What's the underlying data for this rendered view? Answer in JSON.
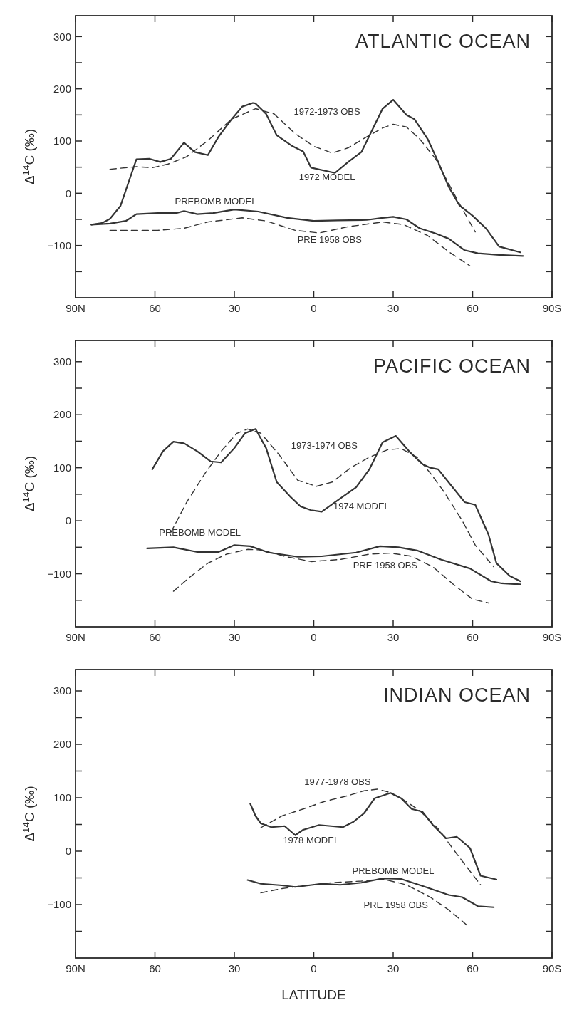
{
  "chart_data": [
    {
      "type": "line",
      "title": "ATLANTIC OCEAN",
      "ylabel": "Δ$^{14}$C  (‰)",
      "xlim": [
        90,
        -90
      ],
      "ylim": [
        -200,
        340
      ],
      "xticks": [
        {
          "value": 90,
          "label": "90N"
        },
        60,
        30,
        0,
        {
          "value": -30,
          "label": "30"
        },
        {
          "value": -60,
          "label": "60"
        },
        {
          "value": -90,
          "label": "90S"
        }
      ],
      "yticks": [
        {
          "value": -150,
          "label": null
        },
        {
          "value": -100,
          "label": "−100"
        },
        {
          "value": -50,
          "label": null
        },
        0,
        {
          "value": 50,
          "label": null
        },
        100,
        {
          "value": 150,
          "label": null
        },
        200,
        {
          "value": 250,
          "label": null
        },
        300
      ],
      "grid": false,
      "legend": false,
      "marker": "none",
      "series": [
        {
          "name": "1972 MODEL",
          "color": "#333333",
          "line_style": "solid",
          "x": [
            84,
            80,
            77,
            73,
            67,
            62,
            58,
            54,
            49,
            45,
            40,
            36,
            31,
            27,
            23,
            22,
            18,
            14,
            8,
            4,
            1,
            -8,
            -13,
            -18,
            -26,
            -30,
            -35,
            -38,
            -43,
            -47,
            -51,
            -55,
            -60,
            -65,
            -70,
            -78
          ],
          "values": [
            -60,
            -57,
            -49,
            -24,
            65,
            66,
            60,
            66,
            97,
            79,
            73,
            108,
            142,
            166,
            173,
            172,
            152,
            111,
            90,
            80,
            49,
            39,
            60,
            79,
            162,
            179,
            150,
            142,
            104,
            60,
            12,
            -23,
            -43,
            -67,
            -102,
            -113
          ]
        },
        {
          "name": "1972-1973 OBS",
          "color": "#333333",
          "line_style": "dashed",
          "x": [
            77,
            67,
            61,
            55,
            48,
            40,
            31,
            22,
            15,
            7,
            0,
            -7,
            -13,
            -20,
            -26,
            -30,
            -35,
            -40,
            -46,
            -51,
            -56,
            -61
          ],
          "values": [
            46,
            51,
            49,
            56,
            70,
            101,
            142,
            162,
            152,
            114,
            90,
            77,
            87,
            108,
            125,
            132,
            127,
            104,
            66,
            18,
            -29,
            -74
          ]
        },
        {
          "name": "PREBOMB MODEL",
          "color": "#333333",
          "line_style": "solid",
          "x": [
            84,
            77,
            71,
            67,
            59,
            52,
            49,
            44,
            38,
            30,
            21,
            10,
            0,
            -9,
            -20,
            -26,
            -30,
            -35,
            -40,
            -46,
            -51,
            -57,
            -62,
            -70,
            -79
          ],
          "values": [
            -60,
            -58,
            -53,
            -40,
            -38,
            -38,
            -34,
            -40,
            -38,
            -31,
            -35,
            -47,
            -53,
            -52,
            -51,
            -47,
            -45,
            -50,
            -67,
            -77,
            -87,
            -109,
            -115,
            -118,
            -120
          ]
        },
        {
          "name": "PRE 1958 OBS",
          "color": "#333333",
          "line_style": "dashed",
          "x": [
            77,
            59,
            49,
            40,
            27,
            18,
            7,
            -2,
            -13,
            -26,
            -34,
            -43,
            -51,
            -59
          ],
          "values": [
            -71,
            -71,
            -67,
            -55,
            -47,
            -53,
            -71,
            -76,
            -64,
            -55,
            -60,
            -81,
            -112,
            -139
          ]
        }
      ]
    },
    {
      "type": "line",
      "title": "PACIFIC OCEAN",
      "ylabel": "Δ$^{14}$C  (‰)",
      "xlim": [
        90,
        -90
      ],
      "ylim": [
        -200,
        340
      ],
      "xticks": [
        {
          "value": 90,
          "label": "90N"
        },
        60,
        30,
        0,
        {
          "value": -30,
          "label": "30"
        },
        {
          "value": -60,
          "label": "60"
        },
        {
          "value": -90,
          "label": "90S"
        }
      ],
      "yticks": [
        {
          "value": -150,
          "label": null
        },
        {
          "value": -100,
          "label": "−100"
        },
        {
          "value": -50,
          "label": null
        },
        0,
        {
          "value": 50,
          "label": null
        },
        100,
        {
          "value": 150,
          "label": null
        },
        200,
        {
          "value": 250,
          "label": null
        },
        300
      ],
      "grid": false,
      "legend": false,
      "marker": "none",
      "series": [
        {
          "name": "1974 MODEL",
          "color": "#333333",
          "line_style": "solid",
          "x": [
            61,
            57,
            53,
            49,
            44,
            39,
            35,
            30,
            26,
            22,
            18,
            14,
            9,
            5,
            1,
            -3,
            -10,
            -16,
            -21,
            -26,
            -31,
            -36,
            -41,
            -44,
            -47,
            -52,
            -57,
            -61,
            -66,
            -69,
            -74,
            -78
          ],
          "values": [
            97,
            131,
            149,
            146,
            131,
            112,
            110,
            137,
            165,
            173,
            137,
            73,
            46,
            27,
            20,
            17,
            42,
            63,
            97,
            148,
            160,
            131,
            107,
            100,
            97,
            66,
            35,
            30,
            -26,
            -80,
            -104,
            -114
          ]
        },
        {
          "name": "1973-1974 OBS",
          "color": "#333333",
          "line_style": "dashed",
          "x": [
            54,
            48,
            41,
            35,
            29,
            25,
            20,
            13,
            6,
            -1,
            -7,
            -14,
            -21,
            -28,
            -33,
            -39,
            -44,
            -49,
            -56,
            -61,
            -68
          ],
          "values": [
            -22,
            35,
            90,
            131,
            165,
            173,
            165,
            124,
            76,
            65,
            73,
            100,
            120,
            134,
            136,
            120,
            90,
            56,
            1,
            -46,
            -87
          ]
        },
        {
          "name": "PREBOMB MODEL",
          "color": "#333333",
          "line_style": "solid",
          "x": [
            63,
            53,
            44,
            36,
            30,
            24,
            17,
            6,
            -3,
            -16,
            -25,
            -32,
            -39,
            -48,
            -59,
            -67,
            -71,
            -78
          ],
          "values": [
            -52,
            -50,
            -59,
            -59,
            -46,
            -48,
            -60,
            -68,
            -67,
            -60,
            -48,
            -50,
            -56,
            -73,
            -90,
            -114,
            -118,
            -120
          ]
        },
        {
          "name": "PRE 1958 OBS",
          "color": "#333333",
          "line_style": "dashed",
          "x": [
            53,
            47,
            40,
            33,
            25,
            20,
            11,
            1,
            -10,
            -21,
            -29,
            -37,
            -45,
            -53,
            -60,
            -66
          ],
          "values": [
            -133,
            -107,
            -80,
            -63,
            -54,
            -55,
            -67,
            -77,
            -73,
            -63,
            -61,
            -67,
            -87,
            -121,
            -148,
            -155
          ]
        }
      ]
    },
    {
      "type": "line",
      "title": "INDIAN OCEAN",
      "ylabel": "Δ$^{14}$C  (‰)",
      "xlabel": "LATITUDE",
      "xlim": [
        90,
        -90
      ],
      "ylim": [
        -200,
        340
      ],
      "xticks": [
        {
          "value": 90,
          "label": "90N"
        },
        60,
        30,
        0,
        {
          "value": -30,
          "label": "30"
        },
        {
          "value": -60,
          "label": "60"
        },
        {
          "value": -90,
          "label": "90S"
        }
      ],
      "yticks": [
        {
          "value": -150,
          "label": null
        },
        {
          "value": -100,
          "label": "−100"
        },
        {
          "value": -50,
          "label": null
        },
        0,
        {
          "value": 50,
          "label": null
        },
        100,
        {
          "value": 150,
          "label": null
        },
        200,
        {
          "value": 250,
          "label": null
        },
        300
      ],
      "grid": false,
      "legend": false,
      "marker": "none",
      "series": [
        {
          "name": "1978 MODEL",
          "color": "#333333",
          "line_style": "solid",
          "x": [
            24,
            22,
            20,
            16,
            11,
            7,
            4,
            -2,
            -11,
            -15,
            -19,
            -23,
            -29,
            -33,
            -37,
            -41,
            -45,
            -50,
            -54,
            -59,
            -63,
            -69
          ],
          "values": [
            89,
            66,
            52,
            45,
            47,
            30,
            40,
            49,
            45,
            55,
            71,
            99,
            109,
            99,
            79,
            74,
            49,
            24,
            27,
            6,
            -46,
            -53
          ]
        },
        {
          "name": "1977-1978 OBS",
          "color": "#333333",
          "line_style": "dashed",
          "x": [
            20,
            12,
            4,
            -4,
            -13,
            -19,
            -24,
            -28,
            -33,
            -40,
            -47,
            -54,
            -63
          ],
          "values": [
            44,
            66,
            79,
            93,
            104,
            113,
            116,
            111,
            99,
            76,
            42,
            -5,
            -63
          ]
        },
        {
          "name": "PREBOMB MODEL",
          "color": "#333333",
          "line_style": "solid",
          "x": [
            25,
            20,
            12,
            7,
            -3,
            -10,
            -18,
            -26,
            -33,
            -41,
            -51,
            -56,
            -62,
            -68
          ],
          "values": [
            -54,
            -61,
            -64,
            -67,
            -61,
            -63,
            -59,
            -51,
            -52,
            -65,
            -82,
            -86,
            -103,
            -105
          ]
        },
        {
          "name": "PRE 1958 OBS",
          "color": "#333333",
          "line_style": "dashed",
          "x": [
            20,
            12,
            4,
            -7,
            -18,
            -26,
            -35,
            -44,
            -51,
            -58
          ],
          "values": [
            -78,
            -70,
            -65,
            -59,
            -56,
            -52,
            -63,
            -86,
            -110,
            -139
          ]
        }
      ]
    }
  ]
}
